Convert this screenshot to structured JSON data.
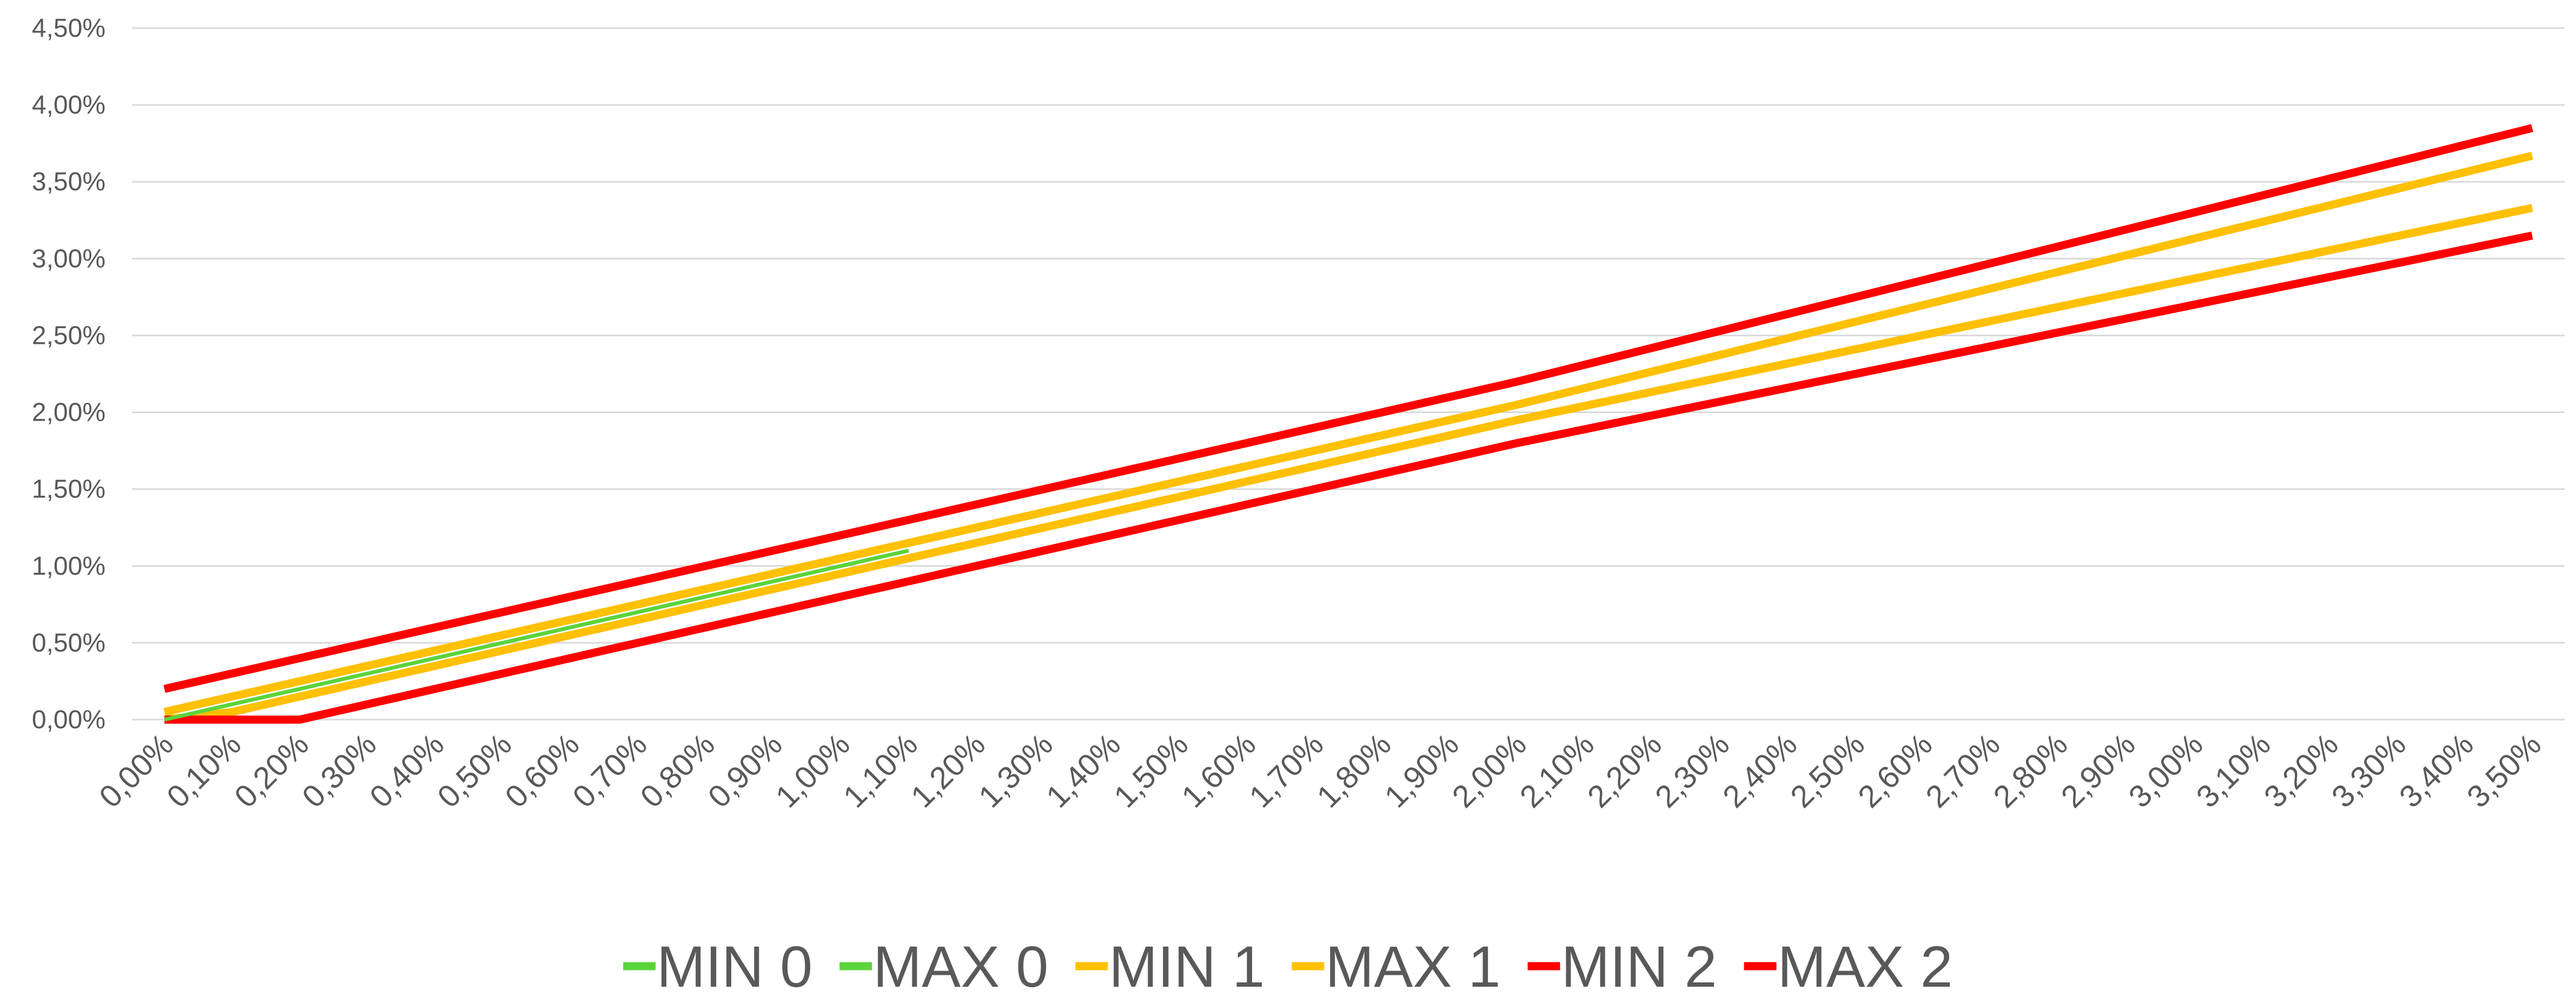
{
  "chart_data": {
    "type": "line",
    "categories": [
      "0,00%",
      "0,10%",
      "0,20%",
      "0,30%",
      "0,40%",
      "0,50%",
      "0,60%",
      "0,70%",
      "0,80%",
      "0,90%",
      "1,00%",
      "1,10%",
      "1,20%",
      "1,30%",
      "1,40%",
      "1,50%",
      "1,60%",
      "1,70%",
      "1,80%",
      "1,90%",
      "2,00%",
      "2,10%",
      "2,20%",
      "2,30%",
      "2,40%",
      "2,50%",
      "2,60%",
      "2,70%",
      "2,80%",
      "2,90%",
      "3,00%",
      "3,10%",
      "3,20%",
      "3,30%",
      "3,40%",
      "3,50%"
    ],
    "series": [
      {
        "name": "MIN 0",
        "color": "#5cd43c",
        "values": [
          0,
          0.1,
          0.2,
          0.3,
          0.4,
          0.5,
          0.6,
          0.7,
          0.8,
          0.9,
          1.0,
          1.1,
          null,
          null,
          null,
          null,
          null,
          null,
          null,
          null,
          null,
          null,
          null,
          null,
          null,
          null,
          null,
          null,
          null,
          null,
          null,
          null,
          null,
          null,
          null,
          null
        ]
      },
      {
        "name": "MAX 0",
        "color": "#5cd43c",
        "values": [
          0,
          0.1,
          0.2,
          0.3,
          0.4,
          0.5,
          0.6,
          0.7,
          0.8,
          0.9,
          1.0,
          1.1,
          null,
          null,
          null,
          null,
          null,
          null,
          null,
          null,
          null,
          null,
          null,
          null,
          null,
          null,
          null,
          null,
          null,
          null,
          null,
          null,
          null,
          null,
          null,
          null
        ]
      },
      {
        "name": "MIN 1",
        "color": "#ffc000",
        "values": [
          0,
          0.05,
          0.15,
          0.25,
          0.35,
          0.45,
          0.55,
          0.65,
          0.75,
          0.85,
          0.95,
          1.05,
          1.15,
          1.25,
          1.35,
          1.45,
          1.55,
          1.65,
          1.75,
          1.85,
          1.95,
          2.042,
          2.134,
          2.226,
          2.318,
          2.41,
          2.502,
          2.594,
          2.686,
          2.778,
          2.87,
          2.962,
          3.054,
          3.146,
          3.238,
          3.33
        ]
      },
      {
        "name": "MAX 1",
        "color": "#ffc000",
        "values": [
          0.05,
          0.15,
          0.25,
          0.35,
          0.45,
          0.55,
          0.65,
          0.75,
          0.85,
          0.95,
          1.05,
          1.15,
          1.25,
          1.35,
          1.45,
          1.55,
          1.65,
          1.75,
          1.85,
          1.95,
          2.05,
          2.158,
          2.266,
          2.374,
          2.482,
          2.59,
          2.698,
          2.806,
          2.914,
          3.022,
          3.13,
          3.238,
          3.346,
          3.454,
          3.562,
          3.67
        ]
      },
      {
        "name": "MIN 2",
        "color": "#ff0000",
        "values": [
          0,
          0,
          0,
          0.1,
          0.2,
          0.3,
          0.4,
          0.5,
          0.6,
          0.7,
          0.8,
          0.9,
          1.0,
          1.1,
          1.2,
          1.3,
          1.4,
          1.5,
          1.6,
          1.7,
          1.8,
          1.89,
          1.98,
          2.07,
          2.16,
          2.25,
          2.34,
          2.43,
          2.52,
          2.61,
          2.7,
          2.79,
          2.88,
          2.97,
          3.06,
          3.15
        ]
      },
      {
        "name": "MAX 2",
        "color": "#ff0000",
        "values": [
          0.2,
          0.3,
          0.4,
          0.5,
          0.6,
          0.7,
          0.8,
          0.9,
          1.0,
          1.1,
          1.2,
          1.3,
          1.4,
          1.5,
          1.6,
          1.7,
          1.8,
          1.9,
          2.0,
          2.1,
          2.2,
          2.31,
          2.42,
          2.53,
          2.64,
          2.75,
          2.86,
          2.97,
          3.08,
          3.19,
          3.3,
          3.41,
          3.52,
          3.63,
          3.74,
          3.85
        ]
      }
    ],
    "ylim": [
      0,
      4.5
    ],
    "yticks": [
      {
        "value": 0,
        "label": "0,00%"
      },
      {
        "value": 0.5,
        "label": "0,50%"
      },
      {
        "value": 1,
        "label": "1,00%"
      },
      {
        "value": 1.5,
        "label": "1,50%"
      },
      {
        "value": 2,
        "label": "2,00%"
      },
      {
        "value": 2.5,
        "label": "2,50%"
      },
      {
        "value": 3,
        "label": "3,00%"
      },
      {
        "value": 3.5,
        "label": "3,50%"
      },
      {
        "value": 4,
        "label": "4,00%"
      },
      {
        "value": 4.5,
        "label": "4,50%"
      }
    ],
    "grid": true,
    "legend": "bottom"
  }
}
